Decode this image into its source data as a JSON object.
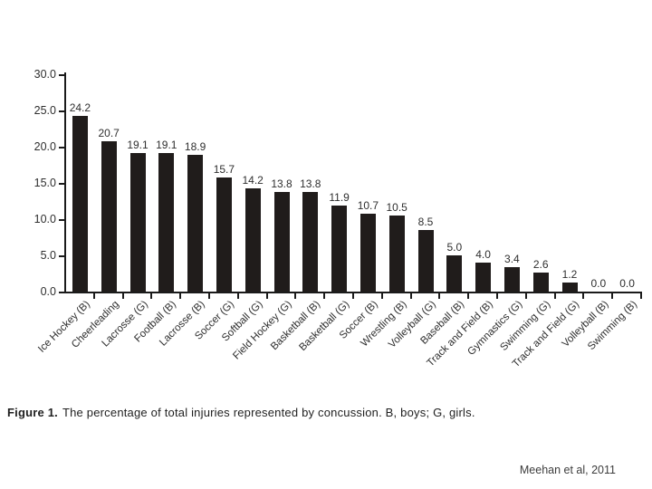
{
  "caption": {
    "label": "Figure 1.",
    "text": "The percentage of total injuries represented by concussion. B, boys; G, girls."
  },
  "citation": "Meehan et al, 2011",
  "chart_data": {
    "type": "bar",
    "title": "",
    "xlabel": "",
    "ylabel": "",
    "categories": [
      "Ice Hockey (B)",
      "Cheerleading",
      "Lacrosse (G)",
      "Football (B)",
      "Lacrosse (B)",
      "Soccer (G)",
      "Softball (G)",
      "Field Hockey (G)",
      "Basketball (B)",
      "Basketball (G)",
      "Soccer (B)",
      "Wrestling (B)",
      "Volleyball (G)",
      "Baseball (B)",
      "Track and Field (B)",
      "Gymnastics (G)",
      "Swimming (G)",
      "Track and Field (G)",
      "Volleyball (B)",
      "Swimming (B)"
    ],
    "values": [
      24.2,
      20.7,
      19.1,
      19.1,
      18.9,
      15.7,
      14.2,
      13.8,
      13.8,
      11.9,
      10.7,
      10.5,
      8.5,
      5.0,
      4.0,
      3.4,
      2.6,
      1.2,
      0.0,
      0.0
    ],
    "data_labels": [
      "24.2",
      "20.7",
      "19.1",
      "19.1",
      "18.9",
      "15.7",
      "14.2",
      "13.8",
      "13.8",
      "11.9",
      "10.7",
      "10.5",
      "8.5",
      "5.0",
      "4.0",
      "3.4",
      "2.6",
      "1.2",
      "0.0",
      "0.0"
    ],
    "ylim": [
      0,
      30
    ],
    "yticks": [
      0,
      5,
      10,
      15,
      20,
      25,
      30
    ],
    "ytick_labels": [
      "0.0",
      "5.0",
      "10.0",
      "15.0",
      "20.0",
      "25.0",
      "30.0"
    ],
    "grid": false,
    "legend": null,
    "bar_color": "#201c1b",
    "axis_color": "#1b1b1b"
  }
}
